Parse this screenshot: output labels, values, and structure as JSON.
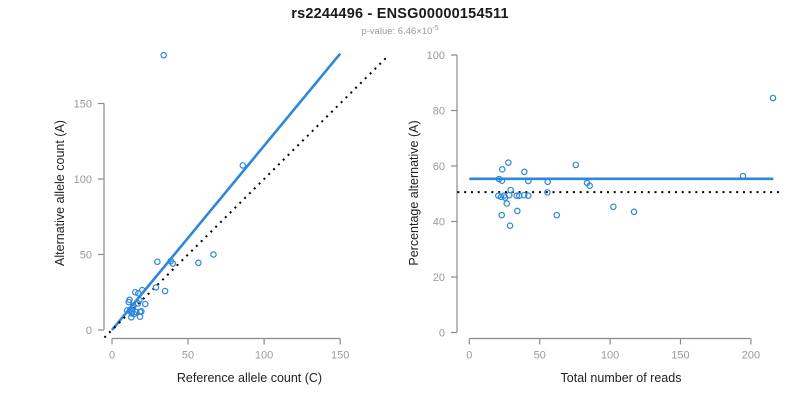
{
  "title": "rs2244496 - ENSG00000154511",
  "subtitle": {
    "main": "p-value: 6.46×10",
    "exponent": "-5"
  },
  "colors": {
    "accent_blue": "#2f87dc",
    "dotted_black": "#000000",
    "axis_gray": "#8c8c8c",
    "tick_label_gray": "#9a9a9a",
    "axis_title_dark": "#222222",
    "title_black": "#1a1a1a",
    "subtitle_gray": "#9a9a9a",
    "background": "#ffffff"
  },
  "chart_data": [
    {
      "type": "scatter",
      "name": "allele-counts-plot",
      "xlabel": "Reference allele count (C)",
      "ylabel": "Alternative allele count (A)",
      "x_ticks": [
        0,
        50,
        100,
        150
      ],
      "y_ticks": [
        0,
        50,
        100,
        150
      ],
      "xlim": [
        -6,
        187
      ],
      "ylim": [
        -6,
        187
      ],
      "grid": false,
      "point_color": "#2f87dc",
      "points": [
        [
          10,
          13
        ],
        [
          11,
          18.5
        ],
        [
          11.5,
          20
        ],
        [
          12,
          13.5
        ],
        [
          12.7,
          8.4
        ],
        [
          13,
          11
        ],
        [
          13.2,
          12.3
        ],
        [
          13.8,
          14.5
        ],
        [
          14,
          16
        ],
        [
          14.5,
          10.6
        ],
        [
          15.3,
          25
        ],
        [
          15.8,
          11.9
        ],
        [
          17.1,
          17.6
        ],
        [
          17.3,
          24.3
        ],
        [
          18,
          19.8
        ],
        [
          18.4,
          8.8
        ],
        [
          18.4,
          12.1
        ],
        [
          19.3,
          12.4
        ],
        [
          19.9,
          26.4
        ],
        [
          21.9,
          17.2
        ],
        [
          28.9,
          28.2
        ],
        [
          34.9,
          25.8
        ],
        [
          29.8,
          45.2
        ],
        [
          38.6,
          45.6
        ],
        [
          40,
          44
        ],
        [
          56.8,
          44.5
        ],
        [
          66.7,
          50
        ],
        [
          86,
          109
        ],
        [
          34,
          182
        ]
      ],
      "lines": [
        {
          "name": "regression-line",
          "style": "solid",
          "color": "#2f87dc",
          "x1": 0,
          "y1": 0,
          "x2": 150,
          "y2": 183
        },
        {
          "name": "identity-line",
          "style": "dotted",
          "color": "#000000",
          "x1": -5,
          "y1": -5,
          "x2": 181,
          "y2": 181
        }
      ]
    },
    {
      "type": "scatter",
      "name": "percentage-alternative-plot",
      "xlabel": "Total number of reads",
      "ylabel": "Percentage alternative (A)",
      "x_ticks": [
        0,
        50,
        100,
        150,
        200
      ],
      "y_ticks": [
        0,
        20,
        40,
        60,
        80,
        100
      ],
      "xlim": [
        -9,
        224
      ],
      "ylim": [
        -2.5,
        102.5
      ],
      "grid": false,
      "point_color": "#2f87dc",
      "points": [
        [
          21.1,
          55.3
        ],
        [
          23.2,
          54.7
        ],
        [
          23.4,
          58.8
        ],
        [
          27.7,
          61.2
        ],
        [
          39.1,
          57.9
        ],
        [
          41.9,
          54.6
        ],
        [
          55.7,
          54.3
        ],
        [
          75.6,
          60.4
        ],
        [
          83.6,
          53.9
        ],
        [
          85.5,
          52.9
        ],
        [
          20.6,
          49.3
        ],
        [
          22.5,
          48.9
        ],
        [
          24.6,
          49.3
        ],
        [
          25.4,
          48.6
        ],
        [
          28.4,
          49.5
        ],
        [
          29.4,
          51.3
        ],
        [
          33.7,
          49.3
        ],
        [
          35.5,
          49.3
        ],
        [
          38.9,
          49.5
        ],
        [
          41.9,
          49.3
        ],
        [
          55.5,
          50.5
        ],
        [
          26.6,
          46.5
        ],
        [
          23,
          42.3
        ],
        [
          34.1,
          43.8
        ],
        [
          62.1,
          42.3
        ],
        [
          28.9,
          38.5
        ],
        [
          102.3,
          45.3
        ],
        [
          117,
          43.5
        ],
        [
          194.4,
          56.4
        ],
        [
          215.7,
          84.5
        ]
      ],
      "lines": [
        {
          "name": "mean-percentage-line",
          "style": "solid",
          "color": "#2f87dc",
          "x1": 0,
          "y1": 55.4,
          "x2": 216,
          "y2": 55.4
        },
        {
          "name": "fifty-percent-line",
          "style": "dotted",
          "color": "#000000",
          "x1": -8.5,
          "y1": 50.6,
          "x2": 223,
          "y2": 50.6
        }
      ]
    }
  ]
}
